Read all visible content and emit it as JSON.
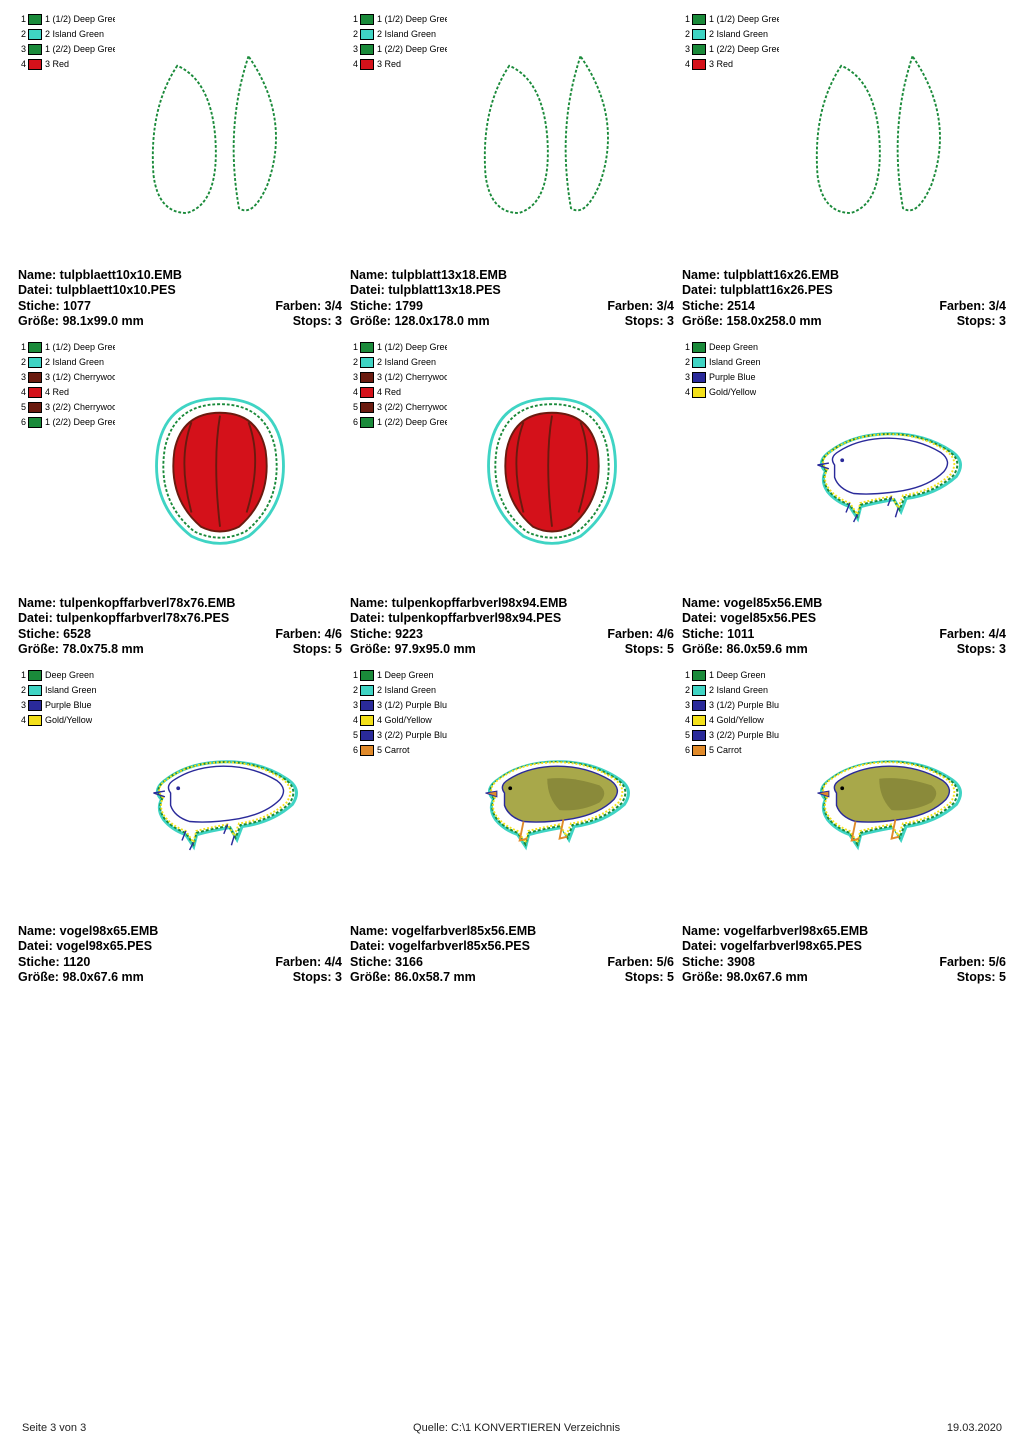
{
  "labels": {
    "name": "Name:",
    "datei": "Datei:",
    "stiche": "Stiche:",
    "farben": "Farben:",
    "groesse": "Größe:",
    "stops": "Stops:"
  },
  "footer": {
    "left": "Seite 3 von 3",
    "center": "Quelle: C:\\1 KONVERTIEREN Verzeichnis",
    "right": "19.03.2020"
  },
  "palette": {
    "deepGreen": "#1a8a3a",
    "islandGreen": "#3fd4c4",
    "red": "#d4111a",
    "darkRed": "#7a1410",
    "purpleBlue": "#2a2a9a",
    "goldYellow": "#f3e01a",
    "carrot": "#e08a2a",
    "cherrywood": "#6a1a0f"
  },
  "items": [
    {
      "kind": "leaves",
      "name": "tulpblaett10x10.EMB",
      "datei": "tulpblaett10x10.PES",
      "stiche": "1077",
      "farben": "3/4",
      "groesse": "98.1x99.0 mm",
      "stops": "3",
      "legend": [
        {
          "n": "1",
          "c": "#1a8a3a",
          "t": "1 (1/2) Deep Gree"
        },
        {
          "n": "2",
          "c": "#3fd4c4",
          "t": "2 Island Green"
        },
        {
          "n": "3",
          "c": "#1a8a3a",
          "t": "1 (2/2) Deep Gree"
        },
        {
          "n": "4",
          "c": "#d4111a",
          "t": "3 Red"
        }
      ]
    },
    {
      "kind": "leaves",
      "name": "tulpblatt13x18.EMB",
      "datei": "tulpblatt13x18.PES",
      "stiche": "1799",
      "farben": "3/4",
      "groesse": "128.0x178.0 mm",
      "stops": "3",
      "legend": [
        {
          "n": "1",
          "c": "#1a8a3a",
          "t": "1 (1/2) Deep Gree"
        },
        {
          "n": "2",
          "c": "#3fd4c4",
          "t": "2 Island Green"
        },
        {
          "n": "3",
          "c": "#1a8a3a",
          "t": "1 (2/2) Deep Gree"
        },
        {
          "n": "4",
          "c": "#d4111a",
          "t": "3 Red"
        }
      ]
    },
    {
      "kind": "leaves",
      "name": "tulpblatt16x26.EMB",
      "datei": "tulpblatt16x26.PES",
      "stiche": "2514",
      "farben": "3/4",
      "groesse": "158.0x258.0 mm",
      "stops": "3",
      "legend": [
        {
          "n": "1",
          "c": "#1a8a3a",
          "t": "1 (1/2) Deep Gree"
        },
        {
          "n": "2",
          "c": "#3fd4c4",
          "t": "2 Island Green"
        },
        {
          "n": "3",
          "c": "#1a8a3a",
          "t": "1 (2/2) Deep Gree"
        },
        {
          "n": "4",
          "c": "#d4111a",
          "t": "3 Red"
        }
      ]
    },
    {
      "kind": "tulip",
      "name": "tulpenkopffarbverl78x76.EMB",
      "datei": "tulpenkopffarbverl78x76.PES",
      "stiche": "6528",
      "farben": "4/6",
      "groesse": "78.0x75.8 mm",
      "stops": "5",
      "legend": [
        {
          "n": "1",
          "c": "#1a8a3a",
          "t": "1 (1/2) Deep Gree"
        },
        {
          "n": "2",
          "c": "#3fd4c4",
          "t": "2 Island Green"
        },
        {
          "n": "3",
          "c": "#6a1a0f",
          "t": "3 (1/2) Cherrywoo"
        },
        {
          "n": "4",
          "c": "#d4111a",
          "t": "4 Red"
        },
        {
          "n": "5",
          "c": "#6a1a0f",
          "t": "3 (2/2) Cherrywoo"
        },
        {
          "n": "6",
          "c": "#1a8a3a",
          "t": "1 (2/2) Deep Gree"
        }
      ]
    },
    {
      "kind": "tulip",
      "name": "tulpenkopffarbverl98x94.EMB",
      "datei": "tulpenkopffarbverl98x94.PES",
      "stiche": "9223",
      "farben": "4/6",
      "groesse": "97.9x95.0 mm",
      "stops": "5",
      "legend": [
        {
          "n": "1",
          "c": "#1a8a3a",
          "t": "1 (1/2) Deep Gree"
        },
        {
          "n": "2",
          "c": "#3fd4c4",
          "t": "2 Island Green"
        },
        {
          "n": "3",
          "c": "#6a1a0f",
          "t": "3 (1/2) Cherrywoo"
        },
        {
          "n": "4",
          "c": "#d4111a",
          "t": "4 Red"
        },
        {
          "n": "5",
          "c": "#6a1a0f",
          "t": "3 (2/2) Cherrywoo"
        },
        {
          "n": "6",
          "c": "#1a8a3a",
          "t": "1 (2/2) Deep Gree"
        }
      ]
    },
    {
      "kind": "bird-outline",
      "name": "vogel85x56.EMB",
      "datei": "vogel85x56.PES",
      "stiche": "1011",
      "farben": "4/4",
      "groesse": "86.0x59.6 mm",
      "stops": "3",
      "legend": [
        {
          "n": "1",
          "c": "#1a8a3a",
          "t": "Deep Green"
        },
        {
          "n": "2",
          "c": "#3fd4c4",
          "t": "Island Green"
        },
        {
          "n": "3",
          "c": "#2a2a9a",
          "t": "Purple Blue"
        },
        {
          "n": "4",
          "c": "#f3e01a",
          "t": "Gold/Yellow"
        }
      ]
    },
    {
      "kind": "bird-outline",
      "name": "vogel98x65.EMB",
      "datei": "vogel98x65.PES",
      "stiche": "1120",
      "farben": "4/4",
      "groesse": "98.0x67.6 mm",
      "stops": "3",
      "legend": [
        {
          "n": "1",
          "c": "#1a8a3a",
          "t": "Deep Green"
        },
        {
          "n": "2",
          "c": "#3fd4c4",
          "t": "Island Green"
        },
        {
          "n": "3",
          "c": "#2a2a9a",
          "t": "Purple Blue"
        },
        {
          "n": "4",
          "c": "#f3e01a",
          "t": "Gold/Yellow"
        }
      ]
    },
    {
      "kind": "bird-filled",
      "name": "vogelfarbverl85x56.EMB",
      "datei": "vogelfarbverl85x56.PES",
      "stiche": "3166",
      "farben": "5/6",
      "groesse": "86.0x58.7 mm",
      "stops": "5",
      "legend": [
        {
          "n": "1",
          "c": "#1a8a3a",
          "t": "1 Deep Green"
        },
        {
          "n": "2",
          "c": "#3fd4c4",
          "t": "2 Island Green"
        },
        {
          "n": "3",
          "c": "#2a2a9a",
          "t": "3 (1/2) Purple Blu"
        },
        {
          "n": "4",
          "c": "#f3e01a",
          "t": "4 Gold/Yellow"
        },
        {
          "n": "5",
          "c": "#2a2a9a",
          "t": "3 (2/2) Purple Blu"
        },
        {
          "n": "6",
          "c": "#e08a2a",
          "t": "5 Carrot"
        }
      ]
    },
    {
      "kind": "bird-filled",
      "name": "vogelfarbverl98x65.EMB",
      "datei": "vogelfarbverl98x65.PES",
      "stiche": "3908",
      "farben": "5/6",
      "groesse": "98.0x67.6 mm",
      "stops": "5",
      "legend": [
        {
          "n": "1",
          "c": "#1a8a3a",
          "t": "1 Deep Green"
        },
        {
          "n": "2",
          "c": "#3fd4c4",
          "t": "2 Island Green"
        },
        {
          "n": "3",
          "c": "#2a2a9a",
          "t": "3 (1/2) Purple Blu"
        },
        {
          "n": "4",
          "c": "#f3e01a",
          "t": "4 Gold/Yellow"
        },
        {
          "n": "5",
          "c": "#2a2a9a",
          "t": "3 (2/2) Purple Blu"
        },
        {
          "n": "6",
          "c": "#e08a2a",
          "t": "5 Carrot"
        }
      ]
    }
  ]
}
